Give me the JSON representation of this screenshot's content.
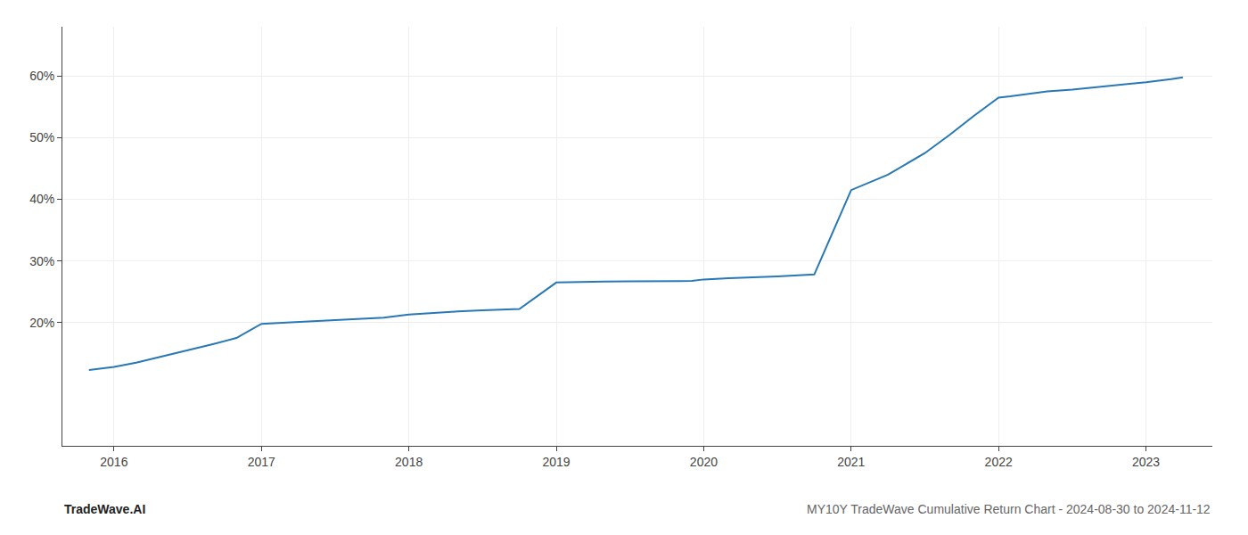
{
  "chart_data": {
    "type": "line",
    "title": "MY10Y TradeWave Cumulative Return Chart - 2024-08-30 to 2024-11-12",
    "annotations": [
      "TradeWave.AI"
    ],
    "x": [
      2015.83,
      2016.0,
      2016.15,
      2016.33,
      2016.5,
      2016.67,
      2016.83,
      2017.0,
      2017.17,
      2017.33,
      2017.5,
      2017.67,
      2017.83,
      2018.0,
      2018.17,
      2018.33,
      2018.5,
      2018.67,
      2018.75,
      2019.0,
      2019.08,
      2019.17,
      2019.33,
      2019.5,
      2019.67,
      2019.75,
      2019.92,
      2020.0,
      2020.08,
      2020.17,
      2020.5,
      2020.75,
      2021.0,
      2021.25,
      2021.5,
      2021.67,
      2021.83,
      2022.0,
      2022.08,
      2022.17,
      2022.33,
      2022.5,
      2022.67,
      2022.83,
      2023.0,
      2023.17,
      2023.25
    ],
    "values": [
      12.3,
      12.8,
      13.5,
      14.5,
      15.5,
      16.5,
      17.5,
      19.8,
      20.0,
      20.2,
      20.4,
      20.6,
      20.8,
      21.3,
      21.6,
      21.8,
      22.0,
      22.1,
      22.2,
      26.5,
      26.55,
      26.6,
      26.65,
      26.68,
      26.7,
      26.72,
      26.75,
      27.0,
      27.1,
      27.2,
      27.5,
      27.8,
      41.5,
      44.0,
      47.5,
      50.5,
      53.5,
      56.5,
      56.7,
      57.0,
      57.5,
      57.8,
      58.2,
      58.5,
      59.0,
      59.5,
      59.8
    ],
    "color": "#2878b5",
    "xlim": [
      2015.65,
      2023.45
    ],
    "xticks": [
      2016,
      2017,
      2018,
      2019,
      2020,
      2021,
      2022,
      2023
    ],
    "ylim": [
      0,
      68
    ],
    "yticks": [
      {
        "value": 20,
        "label": "20%"
      },
      {
        "value": 30,
        "label": "30%"
      },
      {
        "value": 40,
        "label": "40%"
      },
      {
        "value": 50,
        "label": "50%"
      },
      {
        "value": 60,
        "label": "60%"
      }
    ],
    "grid": true
  }
}
